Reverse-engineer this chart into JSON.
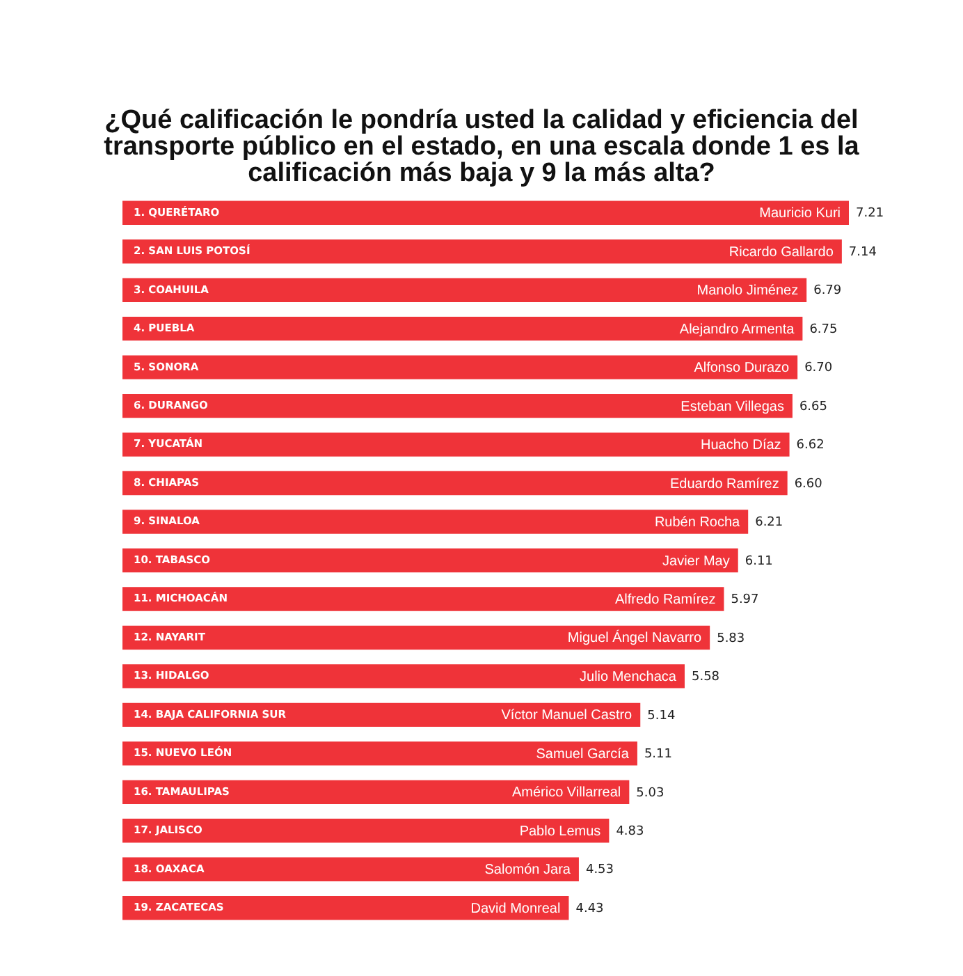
{
  "chart_data": {
    "type": "bar",
    "orientation": "horizontal",
    "title": "¿Qué calificación le pondría usted la calidad y eficiencia del transporte público en el estado, en una escala donde 1 es la calificación más baja y 9 la más alta?",
    "categories": [
      "1. QUERÉTARO",
      "2. SAN LUIS POTOSÍ",
      "3. COAHUILA",
      "4. PUEBLA",
      "5. SONORA",
      "6. DURANGO",
      "7. YUCATÁN",
      "8. CHIAPAS",
      "9. SINALOA",
      "10. TABASCO",
      "11. MICHOACÁN",
      "12. NAYARIT",
      "13. HIDALGO",
      "14. BAJA CALIFORNIA SUR",
      "15. NUEVO LEÓN",
      "16. TAMAULIPAS",
      "17. JALISCO",
      "18. OAXACA",
      "19. ZACATECAS"
    ],
    "values": [
      7.21,
      7.14,
      6.79,
      6.75,
      6.7,
      6.65,
      6.62,
      6.6,
      6.21,
      6.11,
      5.97,
      5.83,
      5.58,
      5.14,
      5.11,
      5.03,
      4.83,
      4.53,
      4.43
    ],
    "value_labels": [
      "7.21",
      "7.14",
      "6.79",
      "6.75",
      "6.70",
      "6.65",
      "6.62",
      "6.60",
      "6.21",
      "6.11",
      "5.97",
      "5.83",
      "5.58",
      "5.14",
      "5.11",
      "5.03",
      "4.83",
      "4.53",
      "4.43"
    ],
    "color": "#ef3339",
    "annotations": [
      {
        "text": "Mauricio Kuri",
        "x": 7.21,
        "y": "1. QUERÉTARO"
      },
      {
        "text": "Ricardo Gallardo",
        "x": 7.14,
        "y": "2. SAN LUIS POTOSÍ"
      },
      {
        "text": "Manolo Jiménez",
        "x": 6.79,
        "y": "3. COAHUILA"
      },
      {
        "text": "Alejandro Armenta",
        "x": 6.75,
        "y": "4. PUEBLA"
      },
      {
        "text": "Alfonso Durazo",
        "x": 6.7,
        "y": "5. SONORA"
      },
      {
        "text": "Esteban Villegas",
        "x": 6.65,
        "y": "6. DURANGO"
      },
      {
        "text": "Huacho Díaz",
        "x": 6.62,
        "y": "7. YUCATÁN"
      },
      {
        "text": "Eduardo Ramírez",
        "x": 6.6,
        "y": "8. CHIAPAS"
      },
      {
        "text": "Rubén Rocha",
        "x": 6.21,
        "y": "9. SINALOA"
      },
      {
        "text": "Javier May",
        "x": 6.11,
        "y": "10. TABASCO"
      },
      {
        "text": "Alfredo Ramírez",
        "x": 5.97,
        "y": "11. MICHOACÁN"
      },
      {
        "text": "Miguel Ángel Navarro",
        "x": 5.83,
        "y": "12. NAYARIT"
      },
      {
        "text": "Julio Menchaca",
        "x": 5.58,
        "y": "13. HIDALGO"
      },
      {
        "text": "Víctor Manuel Castro",
        "x": 5.14,
        "y": "14. BAJA CALIFORNIA SUR"
      },
      {
        "text": "Samuel García",
        "x": 5.11,
        "y": "15. NUEVO LEÓN"
      },
      {
        "text": "Américo Villarreal",
        "x": 5.03,
        "y": "16. TAMAULIPAS"
      },
      {
        "text": "Pablo Lemus",
        "x": 4.83,
        "y": "17. JALISCO"
      },
      {
        "text": "Salomón Jara",
        "x": 4.53,
        "y": "18. OAXACA"
      },
      {
        "text": "David Monreal",
        "x": 4.43,
        "y": "19. ZACATECAS"
      }
    ]
  }
}
